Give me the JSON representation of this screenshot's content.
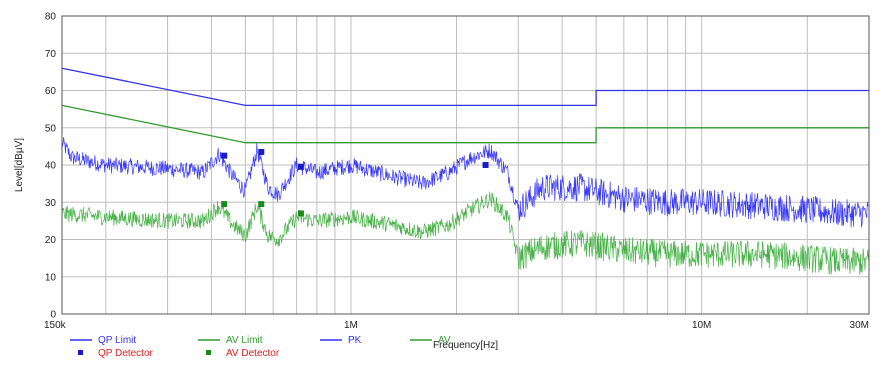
{
  "chart_data": {
    "type": "line",
    "title": "",
    "xlabel": "Frequency[Hz]",
    "ylabel": "Level[dBµV]",
    "x_scale": "log",
    "xlim": [
      150000,
      30000000
    ],
    "ylim": [
      0,
      80
    ],
    "grid": true,
    "y_ticks": [
      "0",
      "10",
      "20",
      "30",
      "40",
      "50",
      "60",
      "70",
      "80"
    ],
    "x_ticks": [
      {
        "value": 150000,
        "label": "150k"
      },
      {
        "value": 1000000,
        "label": "1M"
      },
      {
        "value": 10000000,
        "label": "10M"
      },
      {
        "value": 30000000,
        "label": "30M"
      }
    ],
    "series": [
      {
        "name": "QP Limit",
        "color": "#3333ee",
        "style": "line",
        "x": [
          150000,
          500000,
          500000,
          5000000,
          5000000,
          30000000
        ],
        "y": [
          66,
          56,
          56,
          56,
          60,
          60
        ]
      },
      {
        "name": "AV Limit",
        "color": "#339933",
        "style": "line",
        "x": [
          150000,
          500000,
          500000,
          5000000,
          5000000,
          30000000
        ],
        "y": [
          56,
          46,
          46,
          46,
          50,
          50
        ]
      },
      {
        "name": "PK",
        "color": "#2222ff",
        "style": "noisy-line",
        "x": [
          150000,
          160000,
          200000,
          300000,
          380000,
          420000,
          460000,
          500000,
          540000,
          580000,
          620000,
          700000,
          800000,
          1000000,
          1300000,
          1600000,
          1900000,
          2200000,
          2500000,
          2800000,
          3000000,
          3500000,
          4500000,
          6000000,
          8000000,
          10000000,
          15000000,
          20000000,
          25000000,
          30000000
        ],
        "y": [
          46,
          42,
          40,
          39,
          38,
          43,
          37,
          33,
          44,
          34,
          32,
          40,
          38,
          40,
          37,
          35,
          38,
          42,
          44,
          38,
          28,
          34,
          34,
          31,
          30,
          30,
          29,
          28,
          27,
          27
        ]
      },
      {
        "name": "AV",
        "color": "#33aa33",
        "style": "noisy-line",
        "x": [
          150000,
          200000,
          300000,
          380000,
          420000,
          460000,
          500000,
          540000,
          580000,
          620000,
          700000,
          800000,
          1000000,
          1300000,
          1600000,
          1900000,
          2200000,
          2500000,
          2800000,
          3000000,
          3500000,
          4500000,
          6000000,
          8000000,
          10000000,
          15000000,
          20000000,
          25000000,
          30000000
        ],
        "y": [
          27,
          26,
          25,
          25,
          29,
          24,
          21,
          29,
          21,
          20,
          26,
          25,
          26,
          24,
          22,
          24,
          28,
          31,
          26,
          15,
          18,
          19,
          17,
          16,
          16,
          16,
          15,
          14,
          14
        ]
      },
      {
        "name": "QP Detector",
        "color": "#1a1acc",
        "style": "markers",
        "x": [
          435000,
          555000,
          720000,
          2420000
        ],
        "y": [
          42.5,
          43.5,
          39.5,
          40.0
        ]
      },
      {
        "name": "AV Detector",
        "color": "#1a8a1a",
        "style": "markers",
        "x": [
          435000,
          555000,
          720000
        ],
        "y": [
          29.5,
          29.5,
          27.0
        ]
      }
    ],
    "legend": {
      "placement": "bottom",
      "entries": [
        {
          "label": "QP Limit",
          "kind": "line",
          "color": "#3333ee",
          "text_color": "#3333ee"
        },
        {
          "label": "AV Limit",
          "kind": "line",
          "color": "#339933",
          "text_color": "#339933"
        },
        {
          "label": "PK",
          "kind": "line",
          "color": "#3333ee",
          "text_color": "#3333ee"
        },
        {
          "label": "AV",
          "kind": "line",
          "color": "#339933",
          "text_color": "#339933"
        },
        {
          "label": "QP Detector",
          "kind": "marker",
          "color": "#1a1acc",
          "text_color": "#dd2222"
        },
        {
          "label": "AV Detector",
          "kind": "marker",
          "color": "#1a8a1a",
          "text_color": "#dd2222"
        }
      ]
    }
  }
}
